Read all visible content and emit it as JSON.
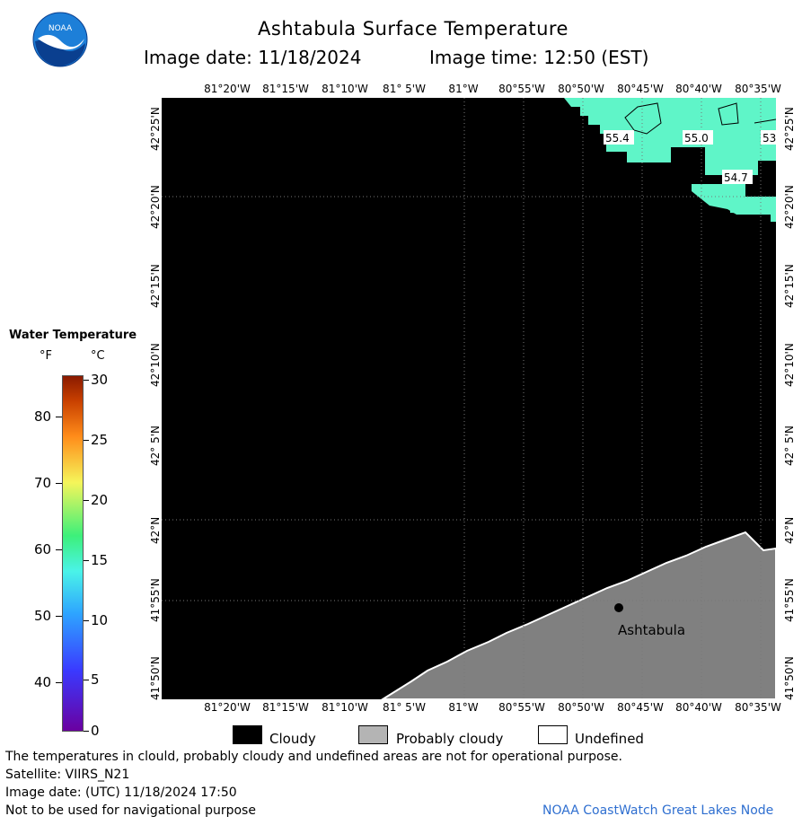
{
  "header": {
    "title": "Ashtabula Surface Temperature",
    "image_date_label": "Image date: 11/18/2024",
    "image_time_label": "Image time: 12:50 (EST)",
    "logo_text": "NOAA"
  },
  "map": {
    "lon_labels": [
      "81°20'W",
      "81°15'W",
      "81°10'W",
      "81° 5'W",
      "81°W",
      "80°55'W",
      "80°50'W",
      "80°45'W",
      "80°40'W",
      "80°35'W"
    ],
    "lat_labels": [
      "42°25'N",
      "42°20'N",
      "42°15'N",
      "42°10'N",
      "42° 5'N",
      "42°N",
      "41°55'N",
      "41°50'N"
    ],
    "city_label": "Ashtabula",
    "contour_labels": [
      "55.4",
      "55.0",
      "54.7",
      "53"
    ],
    "colors": {
      "cloud": "#000000",
      "probably_cloudy": "#808080",
      "water_warm": "#5ff5c8",
      "land_line": "#ffffff"
    }
  },
  "legend": {
    "title": "Water Temperature",
    "unit_f": "°F",
    "unit_c": "°C",
    "f_ticks": [
      "80",
      "70",
      "60",
      "50",
      "40"
    ],
    "c_ticks": [
      "30",
      "25",
      "20",
      "15",
      "10",
      "5",
      "0"
    ],
    "range_c": [
      0,
      30
    ]
  },
  "key": {
    "cloudy": "Cloudy",
    "probably_cloudy": "Probably cloudy",
    "undefined": "Undefined"
  },
  "footer": {
    "disclaimer": "The temperatures in clould, probably cloudy and undefined areas are not for operational purpose.",
    "satellite": "Satellite: VIIRS_N21",
    "utc_date": "Image date: (UTC) 11/18/2024  17:50",
    "nav_warning": "Not to be used for navigational purpose",
    "credit": "NOAA CoastWatch Great Lakes Node"
  }
}
